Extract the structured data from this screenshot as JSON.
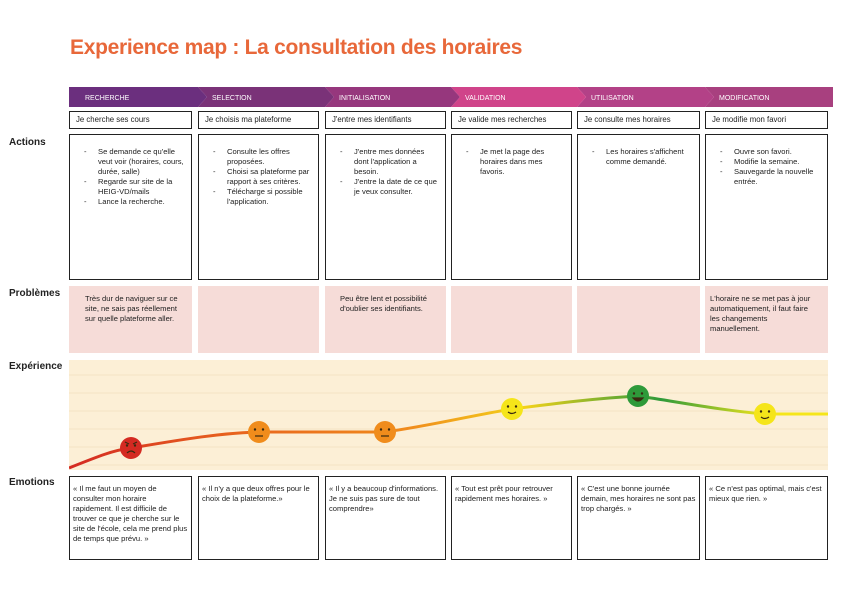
{
  "title": "Experience map : La consultation des horaires",
  "row_labels": {
    "actions": "Actions",
    "problems": "Problèmes",
    "experience": "Expérience",
    "emotions": "Emotions"
  },
  "stages": [
    {
      "label": "RECHERCHE",
      "color": "#6b2f7e",
      "step": "Je cherche ses cours",
      "actions": [
        "Se demande ce qu'elle veut voir (horaires, cours, durée, salle)",
        "Regarde sur site de la HEIG-VD/mails",
        "Lance la recherche."
      ],
      "problem": "Très dur de naviguer sur ce site, ne sais pas réellement sur quelle plateforme aller.",
      "emotion": "« Il me faut un moyen de consulter mon horaire rapidement. Il est difficile de trouver ce que je cherche sur le site de l'école, cela me prend plus de temps que prévu. »",
      "mood": "angry",
      "mood_color": "#d42a22"
    },
    {
      "label": "SELECTION",
      "color": "#7a3278",
      "step": "Je choisis ma plateforme",
      "actions": [
        "Consulte les offres proposées.",
        "Choisi sa plateforme par rapport à ses critères.",
        "Télécharge si possible l'application."
      ],
      "problem": "",
      "emotion": "« Il n'y a que deux offres pour le choix de la plateforme.»",
      "mood": "neutral",
      "mood_color": "#f08c1c"
    },
    {
      "label": "INITIALISATION",
      "color": "#96377d",
      "step": "J'entre mes identifiants",
      "actions": [
        "J'entre mes données dont l'application a besoin.",
        "J'entre la date de ce que je veux consulter."
      ],
      "problem": "Peu être lent et possibilité d'oublier ses identifiants.",
      "emotion": "« Il y a beaucoup d'informations.  Je ne suis pas sure de tout comprendre»",
      "mood": "neutral",
      "mood_color": "#f08c1c"
    },
    {
      "label": "VALIDATION",
      "color": "#d0448a",
      "step": "Je valide mes recherches",
      "actions": [
        "Je met la page des horaires dans mes favoris."
      ],
      "problem": "",
      "emotion": "« Tout est prêt pour retrouver rapidement mes horaires. »",
      "mood": "smile",
      "mood_color": "#f5e51a"
    },
    {
      "label": "UTILISATION",
      "color": "#b34187",
      "step": "Je consulte mes horaires",
      "actions": [
        "Les horaires s'affichent comme demandé."
      ],
      "problem": "",
      "emotion": "« C'est une bonne journée demain, mes horaires ne sont pas trop chargés. »",
      "mood": "happy",
      "mood_color": "#2e9a3a"
    },
    {
      "label": "MODIFICATION",
      "color": "#a8407f",
      "step": "Je modifie mon favori",
      "actions": [
        "Ouvre son favori.",
        "Modifie la semaine.",
        "Sauvegarde la nouvelle entrée."
      ],
      "problem": "L'horaire ne se met pas à jour automatiquement, il faut faire les changements manuellement.",
      "emotion": "« Ce n'est pas optimal, mais c'est mieux que rien. »",
      "mood": "smile",
      "mood_color": "#f5e51a"
    }
  ],
  "colors": {
    "title": "#e8683a",
    "problem_bg": "#f6dcd8",
    "experience_bg": "#fcefd6"
  }
}
